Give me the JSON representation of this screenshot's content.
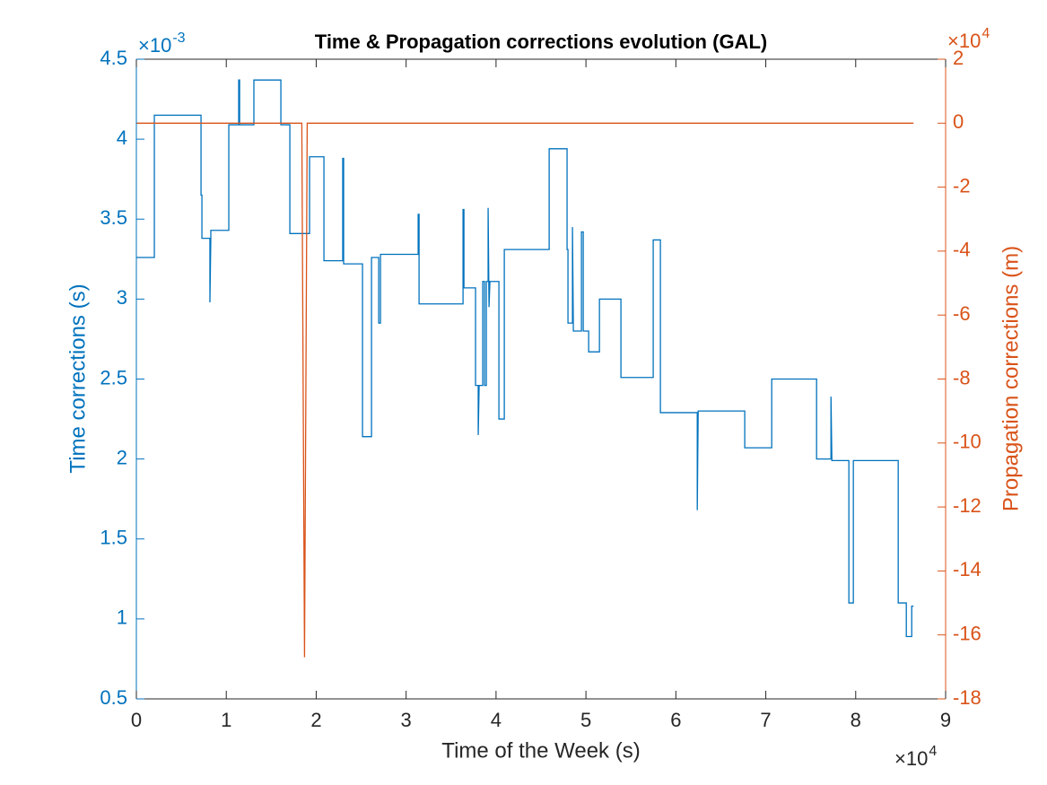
{
  "chart_data": {
    "type": "line",
    "title": "Time & Propagation corrections evolution (GAL)",
    "xlabel": "Time of the Week (s)",
    "ylabel": "Time corrections (s)",
    "y2label": "Propagation corrections (m)",
    "x_exponent": {
      "base": "×10",
      "power": "4"
    },
    "y_exponent": {
      "base": "×10",
      "power": "-3"
    },
    "y2_exponent": {
      "base": "×10",
      "power": "4"
    },
    "xlim": [
      0,
      90000
    ],
    "xticks": [
      0,
      {
        "value": 10000,
        "label": "1"
      },
      {
        "value": 20000,
        "label": "2"
      },
      {
        "value": 30000,
        "label": "3"
      },
      {
        "value": 40000,
        "label": "4"
      },
      {
        "value": 50000,
        "label": "5"
      },
      {
        "value": 60000,
        "label": "6"
      },
      {
        "value": 70000,
        "label": "7"
      },
      {
        "value": 80000,
        "label": "8"
      },
      {
        "value": 90000,
        "label": "9"
      }
    ],
    "ylim": [
      0.0005,
      0.0045
    ],
    "yticks": [
      {
        "value": 0.0005,
        "label": "0.5"
      },
      {
        "value": 0.001,
        "label": "1"
      },
      {
        "value": 0.0015,
        "label": "1.5"
      },
      {
        "value": 0.002,
        "label": "2"
      },
      {
        "value": 0.0025,
        "label": "2.5"
      },
      {
        "value": 0.003,
        "label": "3"
      },
      {
        "value": 0.0035,
        "label": "3.5"
      },
      {
        "value": 0.004,
        "label": "4"
      },
      {
        "value": 0.0045,
        "label": "4.5"
      }
    ],
    "y2lim": [
      -180000,
      20000
    ],
    "y2ticks": [
      {
        "value": -180000,
        "label": "-18"
      },
      {
        "value": -160000,
        "label": "-16"
      },
      {
        "value": -140000,
        "label": "-14"
      },
      {
        "value": -120000,
        "label": "-12"
      },
      {
        "value": -100000,
        "label": "-10"
      },
      {
        "value": -80000,
        "label": "-8"
      },
      {
        "value": -60000,
        "label": "-6"
      },
      {
        "value": -40000,
        "label": "-4"
      },
      {
        "value": -20000,
        "label": "-2"
      },
      0,
      {
        "value": 20000,
        "label": "2"
      }
    ],
    "y_color": "#0072bd",
    "y2_color": "#d95319",
    "series": [
      {
        "color": "#0072bd",
        "x": [
          0,
          2000,
          2000,
          7190,
          7190,
          7290,
          7290,
          8180,
          8180,
          8280,
          8280,
          10280,
          10280,
          11380,
          11380,
          11480,
          11480,
          13070,
          13070,
          16070,
          16070,
          17070,
          17070,
          19260,
          19260,
          20860,
          20860,
          22950,
          22950,
          23050,
          23050,
          25150,
          25150,
          26150,
          26150,
          26950,
          26950,
          27150,
          27150,
          31340,
          31340,
          31440,
          31440,
          36330,
          36330,
          36430,
          36430,
          37720,
          37720,
          38020,
          38020,
          38120,
          38520,
          38520,
          38720,
          38720,
          38920,
          38920,
          39120,
          39120,
          39220,
          39320,
          40320,
          40320,
          40920,
          40920,
          45910,
          45910,
          47900,
          47900,
          48000,
          48000,
          48500,
          48500,
          48600,
          49500,
          49500,
          49700,
          49700,
          50300,
          50300,
          51500,
          51500,
          53890,
          53890,
          57480,
          57480,
          58280,
          58280,
          62380,
          62380,
          62480,
          67660,
          67660,
          70660,
          70660,
          75650,
          75650,
          77250,
          77250,
          77350,
          79240,
          79240,
          79740,
          79740,
          84730,
          84730,
          85630,
          85630,
          86230,
          86230,
          86430
        ],
        "values": [
          0.00326,
          0.00326,
          0.00415,
          0.00415,
          0.00365,
          0.00365,
          0.00338,
          0.00338,
          0.00298,
          0.00338,
          0.00343,
          0.00343,
          0.00409,
          0.00409,
          0.00437,
          0.00437,
          0.00409,
          0.00409,
          0.00437,
          0.00437,
          0.00409,
          0.00409,
          0.00341,
          0.00341,
          0.00389,
          0.00389,
          0.00324,
          0.00324,
          0.00388,
          0.00388,
          0.00322,
          0.00322,
          0.00214,
          0.00214,
          0.00326,
          0.00326,
          0.00285,
          0.00285,
          0.00328,
          0.00328,
          0.00353,
          0.00353,
          0.00297,
          0.00297,
          0.00356,
          0.00356,
          0.00307,
          0.00307,
          0.00246,
          0.00246,
          0.00215,
          0.00246,
          0.00246,
          0.00311,
          0.00311,
          0.00246,
          0.00246,
          0.00311,
          0.00311,
          0.00357,
          0.00295,
          0.00311,
          0.00311,
          0.00225,
          0.00225,
          0.00331,
          0.00331,
          0.00394,
          0.00394,
          0.00331,
          0.00331,
          0.00285,
          0.00285,
          0.00345,
          0.0028,
          0.0028,
          0.00342,
          0.00342,
          0.0028,
          0.0028,
          0.00267,
          0.00267,
          0.003,
          0.003,
          0.00251,
          0.00251,
          0.00337,
          0.00337,
          0.00229,
          0.00229,
          0.00168,
          0.0023,
          0.0023,
          0.00207,
          0.00207,
          0.0025,
          0.0025,
          0.002,
          0.002,
          0.00239,
          0.00199,
          0.00199,
          0.0011,
          0.0011,
          0.00199,
          0.00199,
          0.0011,
          0.0011,
          0.00089,
          0.00089,
          0.00108,
          0.00108
        ]
      },
      {
        "color": "#d95319",
        "axis": "y2",
        "x": [
          0,
          18400,
          18700,
          19000,
          86430
        ],
        "values": [
          0,
          0,
          -167000,
          0,
          0
        ]
      }
    ]
  }
}
